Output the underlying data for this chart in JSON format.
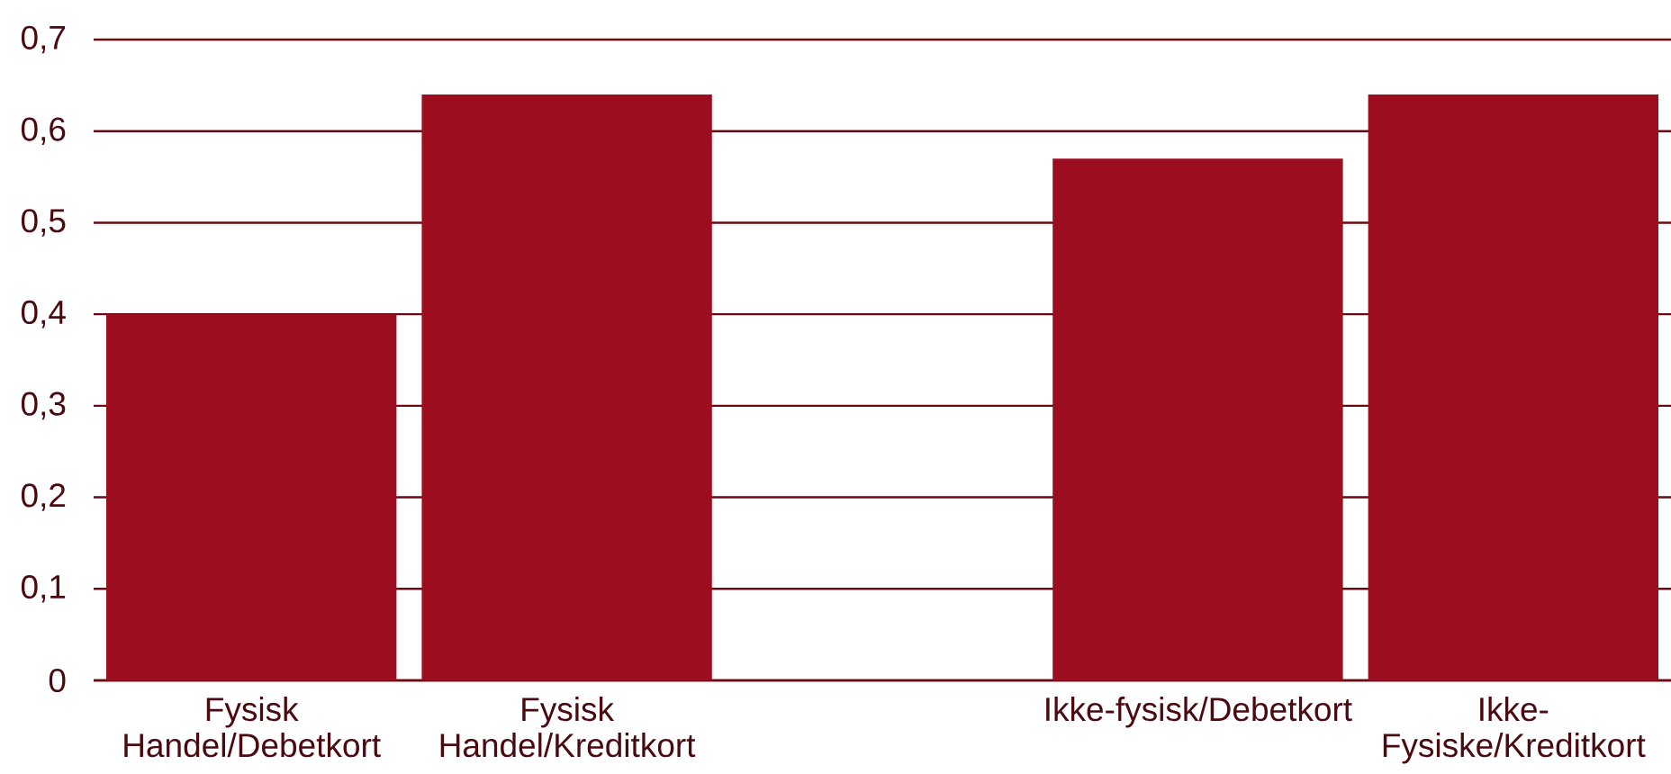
{
  "chart_data": {
    "type": "bar",
    "categories": [
      "Fysisk Handel/Debetkort",
      "Fysisk Handel/Kreditkort",
      null,
      "Ikke-fysisk/Debetkort",
      "Ikke-Fysiske/Kreditkort"
    ],
    "values": [
      0.4,
      0.64,
      null,
      0.57,
      0.64
    ],
    "color": "#9c0d1f",
    "ylim": [
      0,
      0.7
    ],
    "yticks": [
      0,
      {
        "value": 0.1,
        "label": "0,1"
      },
      {
        "value": 0.2,
        "label": "0,2"
      },
      {
        "value": 0.3,
        "label": "0,3"
      },
      {
        "value": 0.4,
        "label": "0,4"
      },
      {
        "value": 0.5,
        "label": "0,5"
      },
      {
        "value": 0.6,
        "label": "0,6"
      },
      {
        "value": 0.7,
        "label": "0,7"
      }
    ],
    "grid": "y"
  }
}
